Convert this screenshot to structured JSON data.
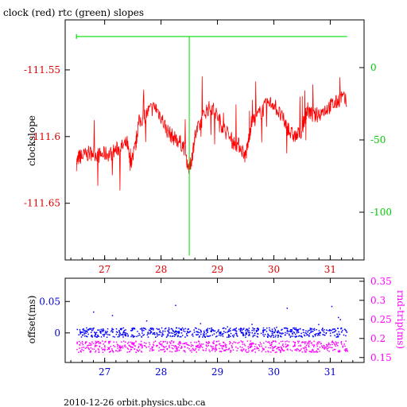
{
  "header_title": "clock (red) rtc (green) slopes",
  "footer_text": "2010-12-26  orbit.physics.ubc.ca",
  "chart_data": [
    {
      "type": "line",
      "title": "clock (red) rtc (green) slopes",
      "ylabel": "clockslope",
      "xlabel": "",
      "x_ticks": [
        "27",
        "28",
        "29",
        "30",
        "31"
      ],
      "x_tick_values": [
        27,
        28,
        29,
        30,
        31
      ],
      "xlim": [
        26.3,
        31.6
      ],
      "left_axis": {
        "ticks": [
          "-111.55",
          "-111.6",
          "-111.65"
        ],
        "tick_values": [
          -111.55,
          -111.6,
          -111.65
        ],
        "ylim": [
          -111.6925,
          -111.5125
        ],
        "color": "#dd0000"
      },
      "right_axis": {
        "ticks": [
          "0",
          "-50",
          "-100"
        ],
        "tick_values": [
          0,
          -50,
          -100
        ],
        "ylim": [
          -133,
          33
        ],
        "color": "#00cc00"
      },
      "grid": false,
      "series": [
        {
          "axis": "left",
          "color": "#ff0000",
          "x": [
            26.5,
            26.55,
            26.6,
            26.7,
            26.8,
            26.9,
            27.0,
            27.1,
            27.2,
            27.3,
            27.4,
            27.45,
            27.5,
            27.55,
            27.6,
            27.7,
            27.8,
            27.9,
            28.0,
            28.1,
            28.2,
            28.3,
            28.4,
            28.5,
            28.55,
            28.6,
            28.7,
            28.8,
            28.9,
            29.0,
            29.1,
            29.2,
            29.3,
            29.4,
            29.5,
            29.55,
            29.6,
            29.7,
            29.8,
            29.9,
            30.0,
            30.1,
            30.2,
            30.3,
            30.4,
            30.5,
            30.55,
            30.6,
            30.7,
            30.8,
            30.9,
            31.0,
            31.1,
            31.2,
            31.3
          ],
          "y": [
            -111.62,
            -111.615,
            -111.615,
            -111.613,
            -111.612,
            -111.614,
            -111.613,
            -111.613,
            -111.61,
            -111.608,
            -111.605,
            -111.62,
            -111.615,
            -111.607,
            -111.59,
            -111.585,
            -111.58,
            -111.578,
            -111.585,
            -111.595,
            -111.6,
            -111.603,
            -111.607,
            -111.625,
            -111.615,
            -111.6,
            -111.59,
            -111.58,
            -111.578,
            -111.585,
            -111.593,
            -111.6,
            -111.605,
            -111.607,
            -111.615,
            -111.603,
            -111.59,
            -111.585,
            -111.58,
            -111.575,
            -111.575,
            -111.583,
            -111.59,
            -111.598,
            -111.6,
            -111.595,
            -111.585,
            -111.58,
            -111.585,
            -111.583,
            -111.58,
            -111.577,
            -111.575,
            -111.57,
            -111.575
          ]
        },
        {
          "axis": "right",
          "color": "#00dd00",
          "x": [
            26.5,
            31.3
          ],
          "y": [
            21.5,
            21.5
          ]
        }
      ]
    },
    {
      "type": "scatter",
      "ylabel": "offset(ms)",
      "xlabel": "",
      "x_ticks": [
        "27",
        "28",
        "29",
        "30",
        "31"
      ],
      "x_tick_values": [
        27,
        28,
        29,
        30,
        31
      ],
      "xlim": [
        26.3,
        31.6
      ],
      "left_axis": {
        "ticks": [
          "0.05",
          "0"
        ],
        "tick_values": [
          0.05,
          0
        ],
        "ylim": [
          -0.047,
          0.087
        ],
        "color": "#0000cc"
      },
      "right_axis": {
        "label": "rnd-trip(ms)",
        "ticks": [
          "0.35",
          "0.3",
          "0.25",
          "0.2",
          "0.15"
        ],
        "tick_values": [
          0.35,
          0.3,
          0.25,
          0.2,
          0.15
        ],
        "ylim": [
          0.137,
          0.358
        ],
        "color": "#ff00ff"
      },
      "grid": false,
      "series": [
        {
          "axis": "left",
          "color": "#0000ff",
          "band": [
            -0.006,
            0.009
          ]
        },
        {
          "axis": "right",
          "color": "#ff00ff",
          "band": [
            0.165,
            0.195
          ]
        }
      ]
    }
  ]
}
